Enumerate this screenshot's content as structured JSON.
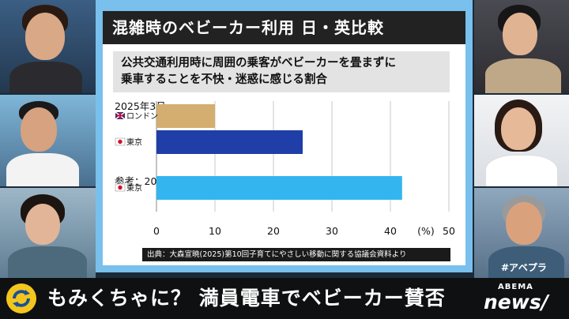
{
  "chart_data": {
    "type": "bar",
    "title": "混雑時のベビーカー利用 日・英比較",
    "subtitle": "公共交通利用時に周囲の乗客がベビーカーを畳まずに乗車することを不快・迷惑に感じる割合",
    "subtitle_line1": "公共交通利用時に周囲の乗客がベビーカーを畳まずに",
    "subtitle_line2": "乗車することを不快・迷惑に感じる割合",
    "groups": [
      {
        "label": "2025年3月",
        "categories": [
          "ロンドン",
          "東京"
        ],
        "values": [
          10,
          25
        ],
        "colors": [
          "#d4ae70",
          "#1f3ea8"
        ]
      },
      {
        "label": "参考：2012年12月",
        "categories": [
          "東京"
        ],
        "values": [
          42
        ],
        "colors": [
          "#33b6f0"
        ]
      }
    ],
    "category_flags": {
      "ロンドン": "uk",
      "東京": "jp"
    },
    "xlim": [
      0,
      50
    ],
    "xticks": [
      0,
      10,
      20,
      30,
      40,
      50
    ],
    "unit_label": "(%)",
    "grid": true,
    "source": "出典：大森宣暁(2025)第10回子育てにやさしい移動に関する協議会資料より"
  },
  "banner": {
    "text": "もみくちゃに？ 満員電車でベビーカー賛否",
    "hashtag": "#アベプラ",
    "logo_top": "ABEMA",
    "logo_bottom": "news/"
  }
}
